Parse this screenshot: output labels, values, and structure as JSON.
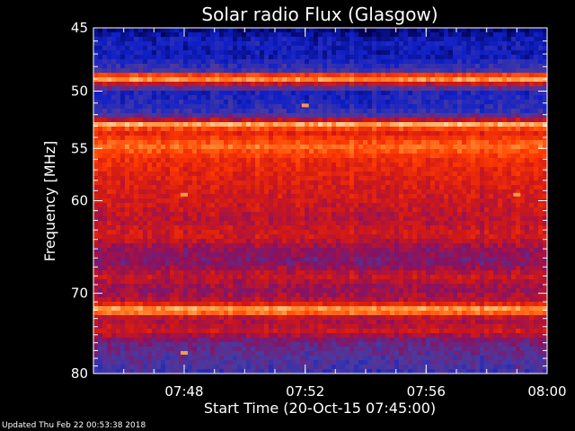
{
  "footer": {
    "updated_text": "Updated Thu Feb 22 00:53:38 2018"
  },
  "colors": {
    "background": "#000000",
    "axes": "#ffffff",
    "colormap": [
      "#00004a",
      "#1020c8",
      "#4a3aa0",
      "#8a1060",
      "#d01818",
      "#ff3a00",
      "#ff8a30",
      "#ffe6b0"
    ]
  },
  "chart_data": {
    "type": "heatmap",
    "title": "Solar radio Flux (Glasgow)",
    "xlabel": "Start Time (20-Oct-15 07:45:00)",
    "ylabel": "Frequency [MHz]",
    "x_ticks": [
      "07:48",
      "07:52",
      "07:56",
      "08:00"
    ],
    "y_ticks": [
      "45",
      "50",
      "55",
      "60",
      "70",
      "80"
    ],
    "x_range": [
      "07:45",
      "08:00"
    ],
    "y_range_mhz": [
      45,
      80
    ],
    "y_scale": "log",
    "colorscale": "blue-red-white (low to high intensity)",
    "frequency_profile": [
      {
        "mhz": 45.3,
        "level": 0.05
      },
      {
        "mhz": 46.0,
        "level": 0.15
      },
      {
        "mhz": 47.0,
        "level": 0.12
      },
      {
        "mhz": 48.3,
        "level": 0.25
      },
      {
        "mhz": 48.9,
        "level": 0.98
      },
      {
        "mhz": 49.4,
        "level": 0.55
      },
      {
        "mhz": 50.0,
        "level": 0.16
      },
      {
        "mhz": 51.5,
        "level": 0.2
      },
      {
        "mhz": 52.3,
        "level": 0.35
      },
      {
        "mhz": 52.8,
        "level": 0.92
      },
      {
        "mhz": 53.5,
        "level": 0.6
      },
      {
        "mhz": 54.8,
        "level": 0.8
      },
      {
        "mhz": 56.0,
        "level": 0.66
      },
      {
        "mhz": 58.0,
        "level": 0.6
      },
      {
        "mhz": 60.0,
        "level": 0.57
      },
      {
        "mhz": 62.0,
        "level": 0.52
      },
      {
        "mhz": 63.5,
        "level": 0.58
      },
      {
        "mhz": 65.0,
        "level": 0.45
      },
      {
        "mhz": 66.5,
        "level": 0.4
      },
      {
        "mhz": 68.0,
        "level": 0.55
      },
      {
        "mhz": 69.5,
        "level": 0.45
      },
      {
        "mhz": 71.0,
        "level": 0.52
      },
      {
        "mhz": 72.0,
        "level": 0.96
      },
      {
        "mhz": 73.0,
        "level": 0.48
      },
      {
        "mhz": 74.5,
        "level": 0.56
      },
      {
        "mhz": 76.0,
        "level": 0.36
      },
      {
        "mhz": 78.0,
        "level": 0.3
      },
      {
        "mhz": 80.0,
        "level": 0.25
      }
    ],
    "bright_spots": [
      {
        "time": "07:52",
        "mhz": 51.2
      },
      {
        "time": "07:48",
        "mhz": 59.4
      },
      {
        "time": "07:59",
        "mhz": 59.4
      },
      {
        "time": "07:48",
        "mhz": 77.3
      }
    ]
  }
}
